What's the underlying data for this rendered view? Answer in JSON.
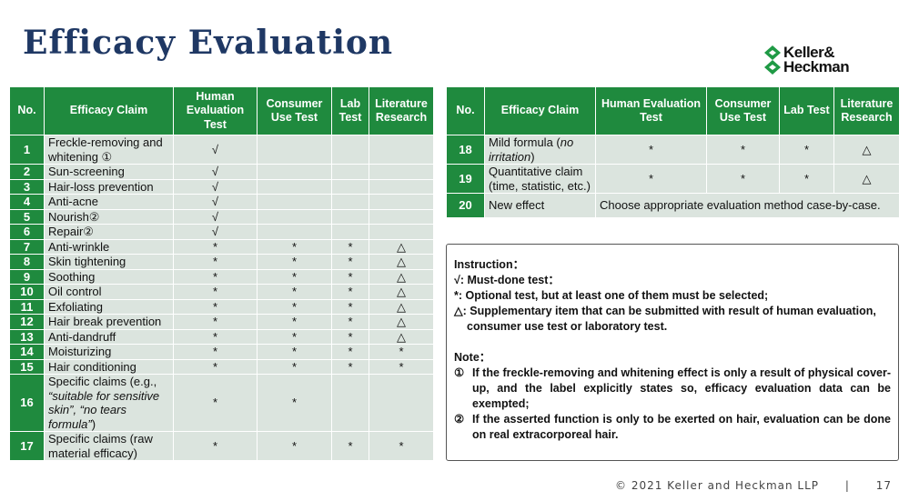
{
  "title": "Efficacy Evaluation",
  "logo": [
    "Keller&",
    "Heckman"
  ],
  "left_table": {
    "header": [
      "No.",
      "Efficacy Claim",
      "Human Evaluation Test",
      "Consumer Use Test",
      "Lab Test",
      "Literature Research"
    ],
    "rows": [
      [
        "1",
        [
          "Freckle-removing and whitening ①"
        ],
        "√",
        null,
        null,
        null
      ],
      [
        "2",
        [
          "Sun-screening"
        ],
        "√",
        null,
        null,
        null
      ],
      [
        "3",
        [
          "Hair-loss prevention"
        ],
        "√",
        null,
        null,
        null
      ],
      [
        "4",
        [
          "Anti-acne"
        ],
        "√",
        null,
        null,
        null
      ],
      [
        "5",
        [
          "Nourish②"
        ],
        "√",
        null,
        null,
        null
      ],
      [
        "6",
        [
          "Repair②"
        ],
        "√",
        null,
        null,
        null
      ],
      [
        "7",
        [
          "Anti-wrinkle"
        ],
        "*",
        "*",
        "*",
        "△"
      ],
      [
        "8",
        [
          "Skin tightening"
        ],
        "*",
        "*",
        "*",
        "△"
      ],
      [
        "9",
        [
          "Soothing"
        ],
        "*",
        "*",
        "*",
        "△"
      ],
      [
        "10",
        [
          "Oil control"
        ],
        "*",
        "*",
        "*",
        "△"
      ],
      [
        "11",
        [
          "Exfoliating"
        ],
        "*",
        "*",
        "*",
        "△"
      ],
      [
        "12",
        [
          "Hair break prevention"
        ],
        "*",
        "*",
        "*",
        "△"
      ],
      [
        "13",
        [
          "Anti-dandruff"
        ],
        "*",
        "*",
        "*",
        "△"
      ],
      [
        "14",
        [
          "Moisturizing"
        ],
        "*",
        "*",
        "*",
        "*"
      ],
      [
        "15",
        [
          "Hair conditioning"
        ],
        "*",
        "*",
        "*",
        "*"
      ],
      [
        "16",
        [
          "Specific claims (e.g., ",
          "“suitable for sensitive skin”, “no tears formula”",
          ")"
        ],
        "*",
        "*",
        null,
        null
      ],
      [
        "17",
        [
          "Specific claims (raw material efficacy)"
        ],
        "*",
        "*",
        "*",
        "*"
      ]
    ]
  },
  "right_table": {
    "header": [
      "No.",
      "Efficacy Claim",
      "Human Evaluation Test",
      "Consumer Use Test",
      "Lab Test",
      "Literature Research"
    ],
    "rows": [
      [
        "18",
        [
          "Mild formula (",
          "no irritation",
          ")"
        ],
        "*",
        "*",
        "*",
        "△"
      ],
      [
        "19",
        [
          "Quantitative claim (time, statistic, etc.)"
        ],
        "*",
        "*",
        "*",
        "△"
      ],
      [
        "20",
        [
          "New effect"
        ],
        "Choose appropriate evaluation method case-by-case."
      ]
    ]
  },
  "instructions": {
    "heading": "Instruction：",
    "items": [
      "√: Must-done test：",
      "*: Optional test, but at least one of them must be selected;",
      "△: Supplementary item that can be submitted with result of human evaluation, consumer use test or laboratory test."
    ],
    "note_heading": "Note：",
    "notes": [
      [
        "①",
        "If the freckle-removing and whitening effect is only a result of physical cover-up, and the label explicitly states so, efficacy evaluation data can be exempted;"
      ],
      [
        "②",
        "If the asserted function is only to be exerted on hair, evaluation can be done on real extracorporeal hair."
      ]
    ]
  },
  "footer": {
    "copyright": "© 2021 Keller and Heckman LLP",
    "separator": "|",
    "page": "17"
  }
}
